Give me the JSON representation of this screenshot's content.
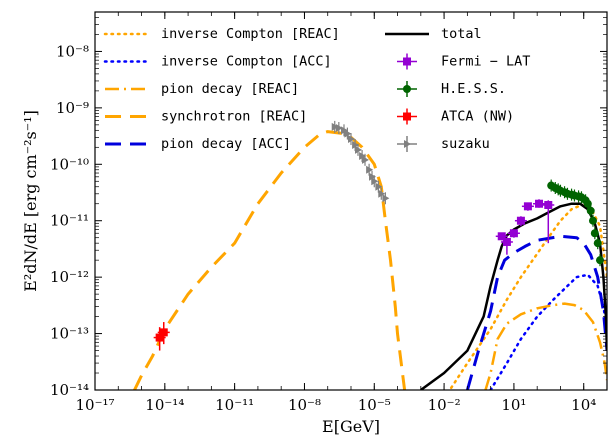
{
  "chart_data": {
    "type": "line",
    "xlabel": "E[GeV]",
    "ylabel": "E²dN/dE [erg cm⁻²s⁻¹]",
    "x_scale": "log",
    "y_scale": "log",
    "xlim": [
      1e-17,
      100000.0
    ],
    "ylim": [
      1e-14,
      5e-08
    ],
    "x_ticks": [
      {
        "value": 1e-17,
        "label": "10⁻¹⁷"
      },
      {
        "value": 1e-14,
        "label": "10⁻¹⁴"
      },
      {
        "value": 1e-11,
        "label": "10⁻¹¹"
      },
      {
        "value": 1e-08,
        "label": "10⁻⁸"
      },
      {
        "value": 1e-05,
        "label": "10⁻⁵"
      },
      {
        "value": 0.01,
        "label": "10⁻²"
      },
      {
        "value": 10,
        "label": "10¹"
      },
      {
        "value": 10000.0,
        "label": "10⁴"
      }
    ],
    "y_ticks": [
      {
        "value": 1e-14,
        "label": "10⁻¹⁴"
      },
      {
        "value": 1e-13,
        "label": "10⁻¹³"
      },
      {
        "value": 1e-12,
        "label": "10⁻¹²"
      },
      {
        "value": 1e-11,
        "label": "10⁻¹¹"
      },
      {
        "value": 1e-10,
        "label": "10⁻¹⁰"
      },
      {
        "value": 1e-09,
        "label": "10⁻⁹"
      },
      {
        "value": 1e-08,
        "label": "10⁻⁸"
      }
    ],
    "legend_position": "top (two columns)",
    "series": [
      {
        "name": "inverse Compton [REAC]",
        "style": "dotted",
        "color": "#FFA500",
        "width": 2.5,
        "points": [
          [
            0.01,
            7e-15
          ],
          [
            0.1,
            3e-14
          ],
          [
            1,
            1.2e-13
          ],
          [
            5,
            4e-13
          ],
          [
            20,
            1e-12
          ],
          [
            100,
            2.6e-12
          ],
          [
            300,
            5e-12
          ],
          [
            1000,
            1e-11
          ],
          [
            3000,
            1.6e-11
          ],
          [
            8000,
            1.9e-11
          ],
          [
            20000,
            1.7e-11
          ],
          [
            50000,
            8e-12
          ],
          [
            70000,
            3e-12
          ],
          [
            100000,
            1e-12
          ]
        ]
      },
      {
        "name": "inverse Compton [ACC]",
        "style": "dotted",
        "color": "#0000FF",
        "width": 2.5,
        "points": [
          [
            1,
            1e-14
          ],
          [
            5,
            3e-14
          ],
          [
            20,
            8e-14
          ],
          [
            100,
            2e-13
          ],
          [
            500,
            4e-13
          ],
          [
            2000,
            7e-13
          ],
          [
            5000,
            1e-12
          ],
          [
            15000,
            1.1e-12
          ],
          [
            40000,
            7e-13
          ],
          [
            70000,
            3e-13
          ],
          [
            100000,
            1.2e-13
          ]
        ]
      },
      {
        "name": "pion decay [REAC]",
        "style": "dashdot",
        "color": "#FFA500",
        "width": 2.5,
        "points": [
          [
            0.6,
            1e-14
          ],
          [
            1,
            2e-14
          ],
          [
            2,
            8e-14
          ],
          [
            5,
            1.5e-13
          ],
          [
            20,
            2.2e-13
          ],
          [
            100,
            2.8e-13
          ],
          [
            500,
            3.2e-13
          ],
          [
            1500,
            3.4e-13
          ],
          [
            4000,
            3.2e-13
          ],
          [
            10000,
            2.6e-13
          ],
          [
            25000,
            1.6e-13
          ],
          [
            50000,
            7e-14
          ],
          [
            80000,
            3e-14
          ],
          [
            100000,
            1.5e-14
          ]
        ]
      },
      {
        "name": "synchrotron [REAC]",
        "style": "dashed",
        "color": "#FFA500",
        "width": 3,
        "points": [
          [
            5e-16,
            1e-14
          ],
          [
            1e-15,
            1.8e-14
          ],
          [
            3e-15,
            4e-14
          ],
          [
            1e-14,
            1.2e-13
          ],
          [
            1e-13,
            5e-13
          ],
          [
            1e-12,
            1.5e-12
          ],
          [
            1e-11,
            4e-12
          ],
          [
            1e-10,
            2e-11
          ],
          [
            1e-09,
            7e-11
          ],
          [
            1e-08,
            2e-10
          ],
          [
            5e-08,
            3.5e-10
          ],
          [
            1e-07,
            3.8e-10
          ],
          [
            5e-07,
            3.5e-10
          ],
          [
            1e-06,
            3e-10
          ],
          [
            3e-06,
            2e-10
          ],
          [
            1e-05,
            1e-10
          ],
          [
            2e-05,
            4e-11
          ],
          [
            3e-05,
            1e-11
          ],
          [
            5e-05,
            2e-12
          ],
          [
            8e-05,
            3e-13
          ],
          [
            0.0001,
            1e-13
          ],
          [
            0.0002,
            1e-14
          ]
        ]
      },
      {
        "name": "pion decay [ACC]",
        "style": "dashed",
        "color": "#0000DD",
        "width": 3,
        "points": [
          [
            0.1,
            1e-14
          ],
          [
            0.3,
            5e-14
          ],
          [
            1,
            2.5e-13
          ],
          [
            2,
            1e-12
          ],
          [
            4,
            2e-12
          ],
          [
            10,
            2.7e-12
          ],
          [
            30,
            3.5e-12
          ],
          [
            100,
            4.5e-12
          ],
          [
            1000,
            5.3e-12
          ],
          [
            5000,
            5e-12
          ],
          [
            10000,
            4e-12
          ],
          [
            20000,
            2.5e-12
          ],
          [
            40000,
            1e-12
          ],
          [
            70000,
            2.5e-13
          ],
          [
            100000,
            5e-14
          ]
        ]
      },
      {
        "name": "total",
        "style": "solid",
        "color": "#000000",
        "width": 2.5,
        "points": [
          [
            0.001,
            1e-14
          ],
          [
            0.01,
            2e-14
          ],
          [
            0.1,
            5e-14
          ],
          [
            0.5,
            2e-13
          ],
          [
            1,
            7e-13
          ],
          [
            2,
            2e-12
          ],
          [
            3,
            3.5e-12
          ],
          [
            5,
            5.5e-12
          ],
          [
            10,
            7e-12
          ],
          [
            30,
            9e-12
          ],
          [
            100,
            1.1e-11
          ],
          [
            300,
            1.4e-11
          ],
          [
            1000,
            1.8e-11
          ],
          [
            3000,
            2e-11
          ],
          [
            7000,
            2e-11
          ],
          [
            15000,
            1.6e-11
          ],
          [
            30000,
            9e-12
          ],
          [
            50000,
            4e-12
          ],
          [
            70000,
            1e-12
          ],
          [
            90000,
            2e-13
          ],
          [
            100000,
            5e-14
          ]
        ]
      }
    ],
    "data_points": [
      {
        "name": "Fermi − LAT",
        "marker": "square",
        "color": "#9400D3",
        "points": [
          [
            3,
            5.3e-12,
            6e-12,
            4.5e-12
          ],
          [
            5,
            4.2e-12,
            5e-12,
            2.5e-12
          ],
          [
            10,
            6e-12,
            7e-12,
            5e-12
          ],
          [
            20,
            1e-11,
            1.2e-11,
            8e-12
          ],
          [
            40,
            1.8e-11,
            2.1e-11,
            1.5e-11
          ],
          [
            120,
            2e-11,
            2.4e-11,
            1.7e-11
          ],
          [
            300,
            1.9e-11,
            2.3e-11,
            4e-12
          ]
        ]
      },
      {
        "name": "H.E.S.S.",
        "marker": "circle",
        "color": "#006400",
        "points": [
          [
            400,
            4.2e-11
          ],
          [
            600,
            3.8e-11
          ],
          [
            800,
            3.6e-11
          ],
          [
            1000,
            3.4e-11
          ],
          [
            1500,
            3.2e-11
          ],
          [
            2000,
            3e-11
          ],
          [
            3000,
            2.9e-11
          ],
          [
            4000,
            2.8e-11
          ],
          [
            6000,
            2.7e-11
          ],
          [
            8000,
            2.6e-11
          ],
          [
            12000,
            2.3e-11
          ],
          [
            15000,
            2e-11
          ],
          [
            20000,
            1.5e-11
          ],
          [
            25000,
            1e-11
          ],
          [
            30000,
            6e-12
          ],
          [
            40000,
            4e-12
          ],
          [
            50000,
            2e-12
          ]
        ]
      },
      {
        "name": "ATCA (NW)",
        "marker": "square",
        "color": "#FF0000",
        "points": [
          [
            6e-15,
            8.5e-14,
            1.3e-13,
            5e-14
          ],
          [
            9e-15,
            1.05e-13,
            1.6e-13,
            6.5e-14
          ]
        ]
      },
      {
        "name": "suzaku",
        "marker": "triangle-right",
        "color": "#808080",
        "points": [
          [
            2e-07,
            4.6e-10
          ],
          [
            3e-07,
            4.4e-10
          ],
          [
            5e-07,
            4e-10
          ],
          [
            7e-07,
            3.5e-10
          ],
          [
            1e-06,
            2.8e-10
          ],
          [
            1.5e-06,
            2.2e-10
          ],
          [
            2e-06,
            1.8e-10
          ],
          [
            3e-06,
            1.4e-10
          ],
          [
            4e-06,
            1.2e-10
          ],
          [
            6e-06,
            8e-11
          ],
          [
            8e-06,
            6e-11
          ],
          [
            1e-05,
            5e-11
          ],
          [
            1.5e-05,
            4e-11
          ],
          [
            2e-05,
            3e-11
          ],
          [
            3e-05,
            2.5e-11
          ]
        ]
      }
    ]
  }
}
